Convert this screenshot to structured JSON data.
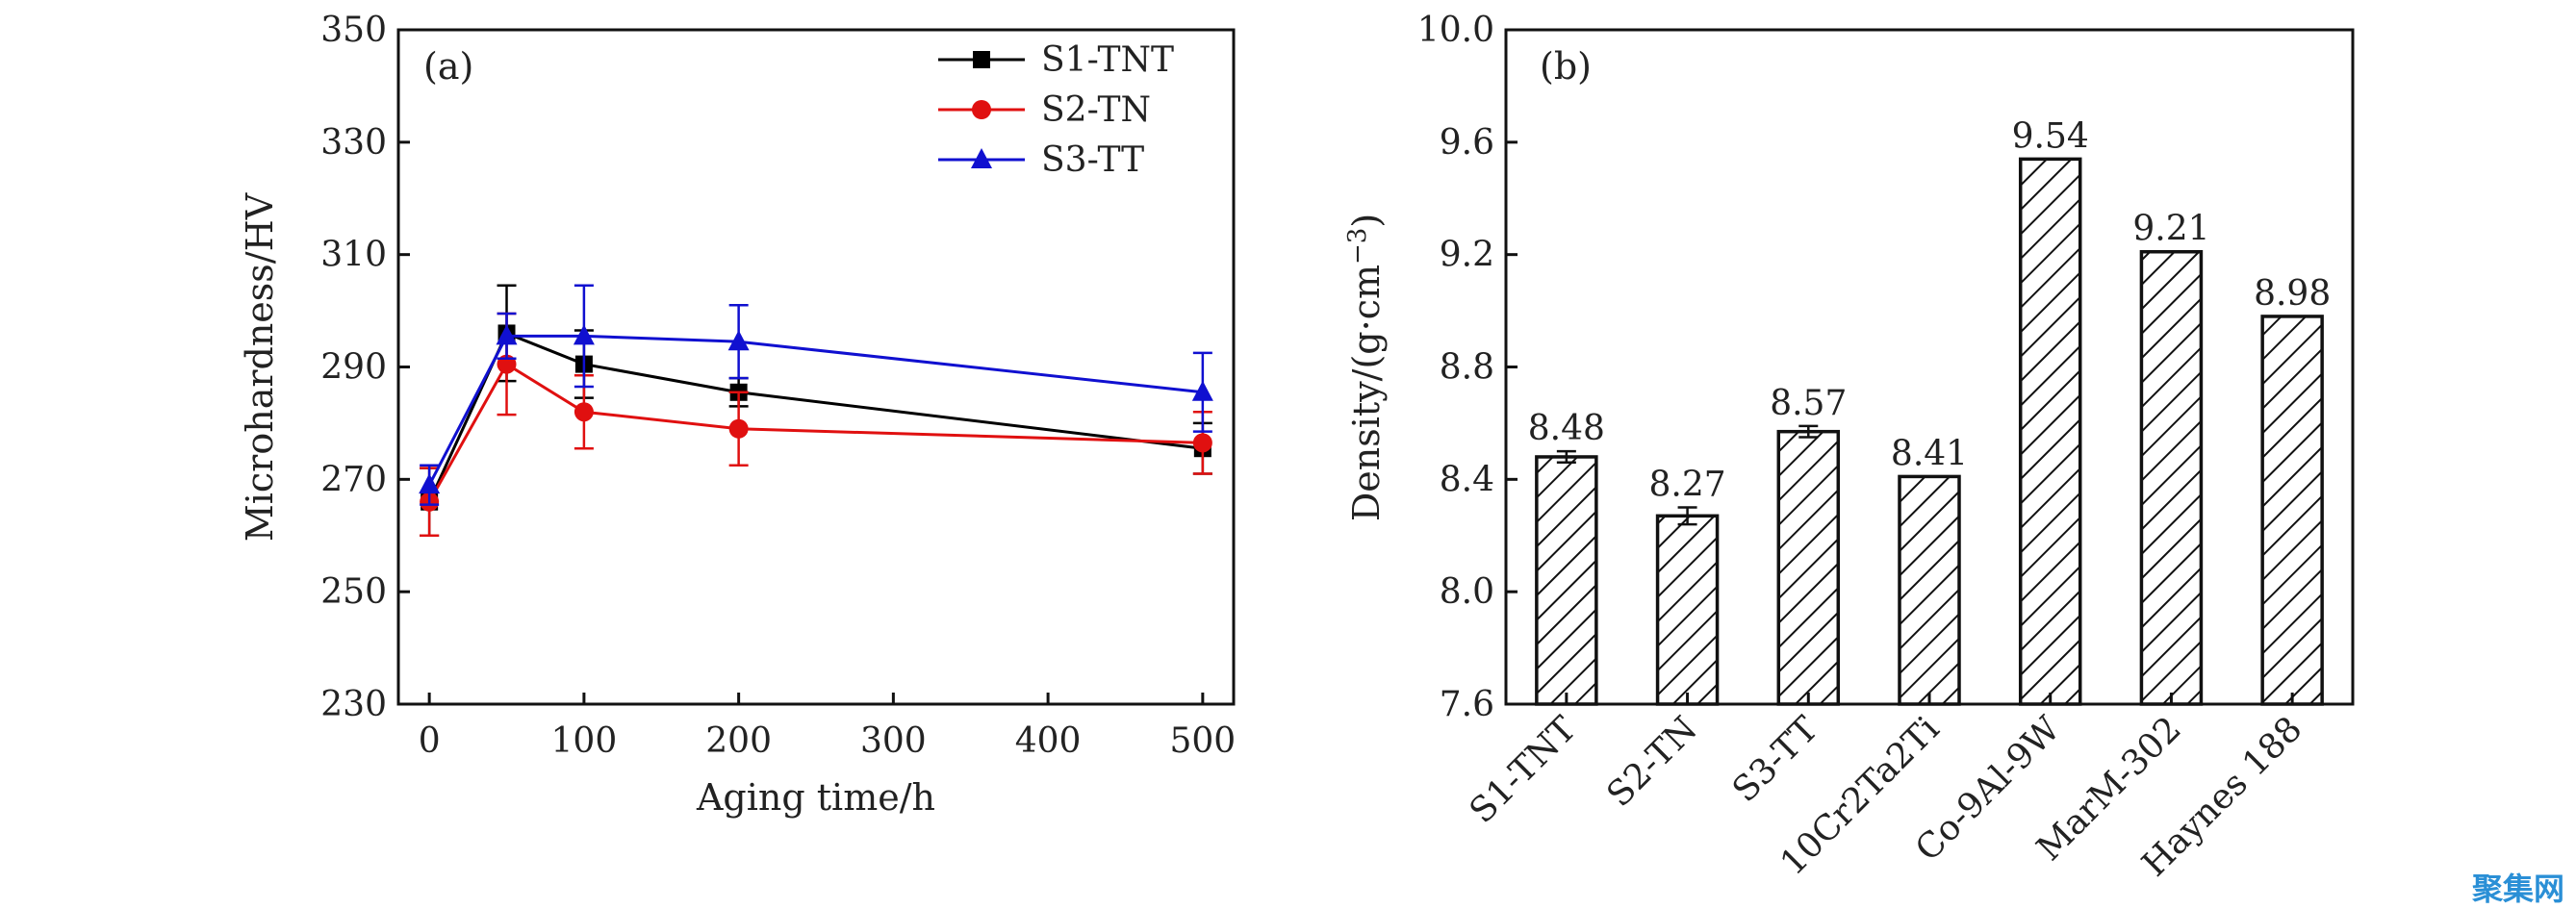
{
  "chart_data": [
    {
      "panel": "(a)",
      "type": "line",
      "xlabel": "Aging time/h",
      "ylabel": "Microhardness/HV",
      "xlim": [
        -20,
        520
      ],
      "ylim": [
        230,
        350
      ],
      "xticks": [
        0,
        100,
        200,
        300,
        400,
        500
      ],
      "yticks": [
        230,
        250,
        270,
        290,
        310,
        330,
        350
      ],
      "x": [
        0,
        50,
        100,
        200,
        500
      ],
      "series": [
        {
          "name": "S1-TNT",
          "color": "#000000",
          "marker": "square",
          "values": [
            266,
            296,
            290.5,
            285.5,
            275.5
          ],
          "errors": [
            6,
            8.5,
            6,
            2.5,
            4.5
          ]
        },
        {
          "name": "S2-TN",
          "color": "#e01010",
          "marker": "circle",
          "values": [
            266,
            290.5,
            282,
            279,
            276.5
          ],
          "errors": [
            6,
            9,
            6.5,
            6.5,
            5.5
          ]
        },
        {
          "name": "S3-TT",
          "color": "#1010d0",
          "marker": "triangle",
          "values": [
            269,
            295.5,
            295.5,
            294.5,
            285.5
          ],
          "errors": [
            3.5,
            4,
            9,
            6.5,
            7
          ]
        }
      ],
      "legend_position": "top-right"
    },
    {
      "panel": "(b)",
      "type": "bar",
      "xlabel": "",
      "ylabel_main": "Density/(g·cm",
      "ylabel_sup": "−3",
      "ylabel_close": ")",
      "ylim": [
        7.6,
        10.0
      ],
      "yticks": [
        "7.6",
        "8.0",
        "8.4",
        "8.8",
        "9.2",
        "9.6",
        "10.0"
      ],
      "categories": [
        "S1-TNT",
        "S2-TN",
        "S3-TT",
        "10Cr2Ta2Ti",
        "Co-9Al-9W",
        "MarM-302",
        "Haynes 188"
      ],
      "values": [
        8.48,
        8.27,
        8.57,
        8.41,
        9.54,
        9.21,
        8.98
      ],
      "value_labels": [
        "8.48",
        "8.27",
        "8.57",
        "8.41",
        "9.54",
        "9.21",
        "8.98"
      ],
      "errors": [
        0.02,
        0.03,
        0.02,
        0,
        0,
        0,
        0
      ],
      "fill": "diagonal-hatch"
    }
  ],
  "watermark": "聚集网"
}
